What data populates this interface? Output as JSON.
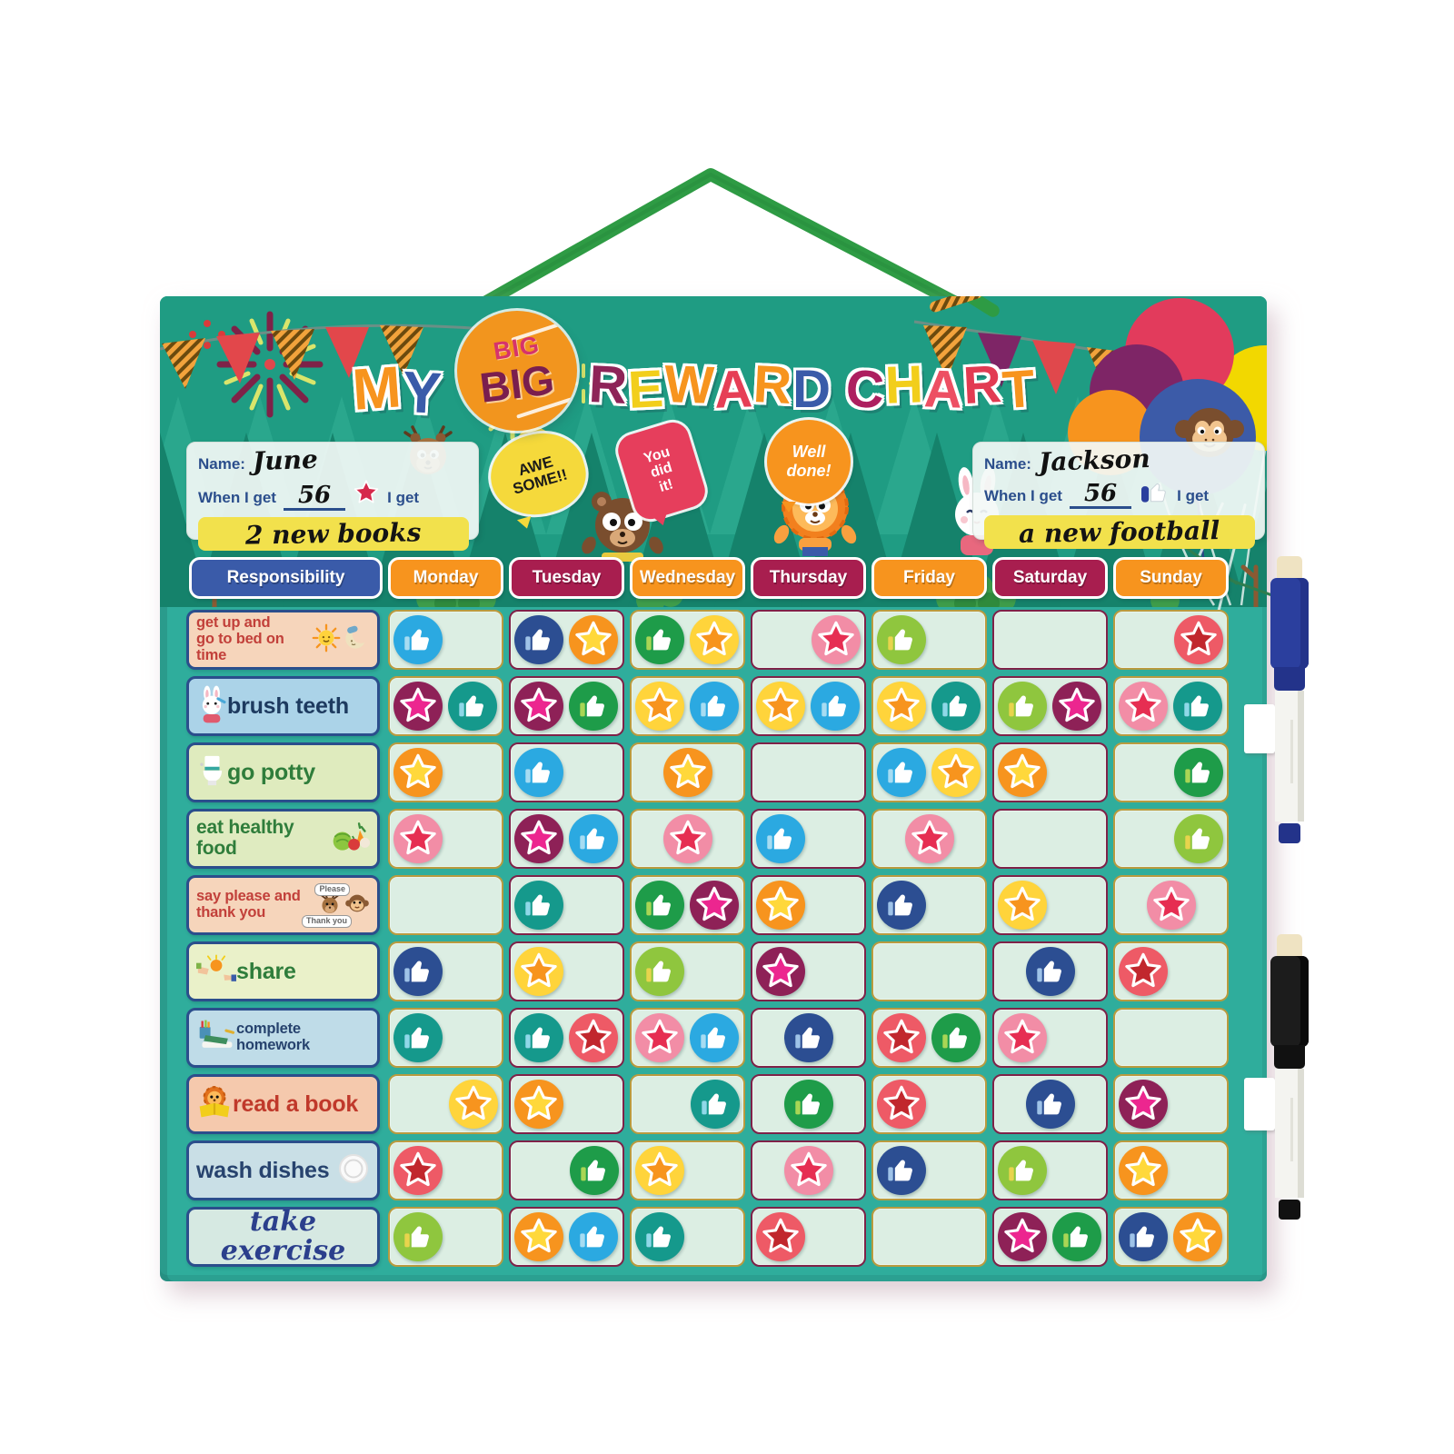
{
  "board": {
    "teal": "#2FAD9C",
    "header_green": "#1F9C83"
  },
  "title": {
    "full": "MY BIG BIG REWARD CHART",
    "my_letters": [
      {
        "ch": "M",
        "color": "#F7941E"
      },
      {
        "ch": "Y",
        "color": "#3A5BA9"
      }
    ],
    "big_small": "BIG",
    "big_large": "BIG",
    "big_circle_color": "#F2951E",
    "rest_letters": [
      {
        "ch": "R",
        "color": "#8E2458"
      },
      {
        "ch": "E",
        "color": "#F2CE1B"
      },
      {
        "ch": "W",
        "color": "#F7941E"
      },
      {
        "ch": "A",
        "color": "#E63E56"
      },
      {
        "ch": "R",
        "color": "#F7941E"
      },
      {
        "ch": "D",
        "color": "#3A5BA9"
      },
      {
        "ch": " "
      },
      {
        "ch": "C",
        "color": "#AD1F5F"
      },
      {
        "ch": "H",
        "color": "#F2CE1B"
      },
      {
        "ch": "A",
        "color": "#ED4F63"
      },
      {
        "ch": "R",
        "color": "#E23B52"
      },
      {
        "ch": "T",
        "color": "#F7941E"
      }
    ]
  },
  "cards": {
    "left": {
      "name_label": "Name:",
      "name": "June",
      "when_label": "When I get",
      "count": "56",
      "get_label": "I get",
      "reward": "2 new books",
      "token": "star"
    },
    "right": {
      "name_label": "Name:",
      "name": "Jackson",
      "when_label": "When I get",
      "count": "56",
      "get_label": "I get",
      "reward": "a new football",
      "token": "thumb"
    }
  },
  "bubbles": {
    "awesome_lines": [
      "AWE",
      "SOME!!"
    ],
    "youdidit_lines": [
      "You",
      "did",
      "it!"
    ],
    "welldone_lines": [
      "Well",
      "done!"
    ]
  },
  "palette": {
    "thumb-sky": {
      "kind": "thumb",
      "bg": "#2BA9E1",
      "sleeve": "#A7DCF2"
    },
    "thumb-navy": {
      "kind": "thumb",
      "bg": "#2C4E92",
      "sleeve": "#9FC3E8"
    },
    "thumb-green": {
      "kind": "thumb",
      "bg": "#1E9C49",
      "sleeve": "#A9D655"
    },
    "thumb-lime": {
      "kind": "thumb",
      "bg": "#8FC63E",
      "sleeve": "#E8D44D"
    },
    "thumb-teal": {
      "kind": "thumb",
      "bg": "#15998C",
      "sleeve": "#8FD8E8"
    },
    "star-orange": {
      "kind": "star",
      "bg": "#F7941E",
      "star": "#FFD83B"
    },
    "star-yellow": {
      "kind": "star",
      "bg": "#FFD43B",
      "star": "#F7941E"
    },
    "star-pink": {
      "kind": "star",
      "bg": "#F28DA6",
      "star": "#E62E52"
    },
    "star-red": {
      "kind": "star",
      "bg": "#EE5A66",
      "star": "#C1272D"
    },
    "star-maroon": {
      "kind": "star",
      "bg": "#8E2157",
      "star": "#EC268F"
    }
  },
  "chart_data": {
    "type": "table",
    "title": "MY BIG BIG REWARD CHART",
    "responsibility_header": {
      "label": "Responsibility",
      "color": "#3A5BA9"
    },
    "columns": [
      {
        "label": "Monday",
        "color": "#F7941E"
      },
      {
        "label": "Tuesday",
        "color": "#A81E4F"
      },
      {
        "label": "Wednesday",
        "color": "#F7941E"
      },
      {
        "label": "Thursday",
        "color": "#A81E4F"
      },
      {
        "label": "Friday",
        "color": "#F7941E"
      },
      {
        "label": "Saturday",
        "color": "#A81E4F"
      },
      {
        "label": "Sunday",
        "color": "#F7941E"
      }
    ],
    "rows": [
      {
        "label": "get up and\ngo to bed on time",
        "bg": "#F6D5BB",
        "color": "#C2403A",
        "icons": [
          "sun-icon",
          "moon-icon"
        ],
        "iconSide": "right",
        "cells": [
          {
            "tokens": [
              "thumb-sky"
            ]
          },
          {
            "tokens": [
              "thumb-navy",
              "star-orange"
            ]
          },
          {
            "tokens": [
              "thumb-green",
              "star-yellow"
            ]
          },
          {
            "tokens": [
              "star-pink"
            ],
            "align": "right"
          },
          {
            "tokens": [
              "thumb-lime"
            ]
          },
          {
            "tokens": []
          },
          {
            "tokens": [
              "star-red"
            ],
            "align": "right"
          }
        ]
      },
      {
        "label": "brush teeth",
        "bg": "#ABD3E8",
        "color": "#1D3A5F",
        "icons": [
          "rabbit-brushing-icon"
        ],
        "iconSide": "left",
        "cells": [
          {
            "tokens": [
              "star-maroon",
              "thumb-teal"
            ]
          },
          {
            "tokens": [
              "star-maroon",
              "thumb-green"
            ]
          },
          {
            "tokens": [
              "star-yellow",
              "thumb-sky"
            ]
          },
          {
            "tokens": [
              "star-yellow",
              "thumb-sky"
            ]
          },
          {
            "tokens": [
              "star-yellow",
              "thumb-teal"
            ]
          },
          {
            "tokens": [
              "thumb-lime",
              "star-maroon"
            ]
          },
          {
            "tokens": [
              "star-pink",
              "thumb-teal"
            ]
          }
        ]
      },
      {
        "label": "go potty",
        "bg": "#DFEBBE",
        "color": "#2F7D3B",
        "icons": [
          "toilet-icon"
        ],
        "iconSide": "left",
        "cells": [
          {
            "tokens": [
              "star-orange"
            ]
          },
          {
            "tokens": [
              "thumb-sky"
            ]
          },
          {
            "tokens": [
              "star-orange"
            ],
            "align": "center"
          },
          {
            "tokens": []
          },
          {
            "tokens": [
              "thumb-sky",
              "star-yellow"
            ]
          },
          {
            "tokens": [
              "star-orange"
            ]
          },
          {
            "tokens": [
              "thumb-green"
            ],
            "align": "right"
          }
        ]
      },
      {
        "label": "eat healthy\nfood",
        "bg": "#DFEBC0",
        "color": "#2F7D3B",
        "icons": [
          "vegetables-icon"
        ],
        "iconSide": "right",
        "cells": [
          {
            "tokens": [
              "star-pink"
            ]
          },
          {
            "tokens": [
              "star-maroon",
              "thumb-sky"
            ]
          },
          {
            "tokens": [
              "star-pink"
            ],
            "align": "center"
          },
          {
            "tokens": [
              "thumb-sky"
            ]
          },
          {
            "tokens": [
              "star-pink"
            ],
            "align": "center"
          },
          {
            "tokens": []
          },
          {
            "tokens": [
              "thumb-lime"
            ],
            "align": "right"
          }
        ]
      },
      {
        "label": "say please and\nthank you",
        "bg": "#F6D5BB",
        "color": "#C2403A",
        "icons": [
          "deer-please-icon",
          "monkey-thankyou-icon"
        ],
        "iconSide": "right",
        "bubbles": [
          "Please",
          "Thank you"
        ],
        "cells": [
          {
            "tokens": []
          },
          {
            "tokens": [
              "thumb-teal"
            ]
          },
          {
            "tokens": [
              "thumb-green",
              "star-maroon"
            ]
          },
          {
            "tokens": [
              "star-orange"
            ]
          },
          {
            "tokens": [
              "thumb-navy"
            ]
          },
          {
            "tokens": [
              "star-yellow"
            ]
          },
          {
            "tokens": [
              "star-pink"
            ],
            "align": "center"
          }
        ]
      },
      {
        "label": "share",
        "bg": "#EAF1C9",
        "color": "#2F7D3B",
        "icons": [
          "sharing-hands-icon"
        ],
        "iconSide": "left",
        "cells": [
          {
            "tokens": [
              "thumb-navy"
            ]
          },
          {
            "tokens": [
              "star-yellow"
            ]
          },
          {
            "tokens": [
              "thumb-lime"
            ]
          },
          {
            "tokens": [
              "star-maroon"
            ]
          },
          {
            "tokens": []
          },
          {
            "tokens": [
              "thumb-navy"
            ],
            "align": "center"
          },
          {
            "tokens": [
              "star-red"
            ]
          }
        ]
      },
      {
        "label": "complete\nhomework",
        "bg": "#BFDCE8",
        "color": "#27436E",
        "icons": [
          "homework-icon"
        ],
        "iconSide": "left",
        "cells": [
          {
            "tokens": [
              "thumb-teal"
            ]
          },
          {
            "tokens": [
              "thumb-teal",
              "star-red"
            ]
          },
          {
            "tokens": [
              "star-pink",
              "thumb-sky"
            ]
          },
          {
            "tokens": [
              "thumb-navy"
            ],
            "align": "center"
          },
          {
            "tokens": [
              "star-red",
              "thumb-green"
            ]
          },
          {
            "tokens": [
              "star-pink"
            ]
          },
          {
            "tokens": []
          }
        ]
      },
      {
        "label": "read a book",
        "bg": "#F5C9AD",
        "color": "#C0392B",
        "icons": [
          "lion-reading-icon"
        ],
        "iconSide": "left",
        "cells": [
          {
            "tokens": [
              "star-yellow"
            ],
            "align": "right"
          },
          {
            "tokens": [
              "star-orange"
            ]
          },
          {
            "tokens": [
              "thumb-teal"
            ],
            "align": "right"
          },
          {
            "tokens": [
              "thumb-green"
            ],
            "align": "center"
          },
          {
            "tokens": [
              "star-red"
            ]
          },
          {
            "tokens": [
              "thumb-navy"
            ],
            "align": "center"
          },
          {
            "tokens": [
              "star-maroon"
            ]
          }
        ]
      },
      {
        "label": "wash dishes",
        "bg": "#C9DFE6",
        "color": "#27436E",
        "icons": [
          "plate-icon"
        ],
        "iconSide": "right",
        "cells": [
          {
            "tokens": [
              "star-red"
            ]
          },
          {
            "tokens": [
              "thumb-green"
            ],
            "align": "right"
          },
          {
            "tokens": [
              "star-yellow"
            ]
          },
          {
            "tokens": [
              "star-pink"
            ],
            "align": "center"
          },
          {
            "tokens": [
              "thumb-navy"
            ]
          },
          {
            "tokens": [
              "thumb-lime"
            ]
          },
          {
            "tokens": [
              "star-orange"
            ]
          }
        ]
      },
      {
        "label": "take exercise",
        "bg": "#D6E9E2",
        "color": "#2B3F8C",
        "script": true,
        "icons": [],
        "iconSide": "left",
        "cells": [
          {
            "tokens": [
              "thumb-lime"
            ]
          },
          {
            "tokens": [
              "star-orange",
              "thumb-sky"
            ]
          },
          {
            "tokens": [
              "thumb-teal"
            ]
          },
          {
            "tokens": [
              "star-red"
            ]
          },
          {
            "tokens": []
          },
          {
            "tokens": [
              "star-maroon",
              "thumb-green"
            ]
          },
          {
            "tokens": [
              "thumb-navy",
              "star-orange"
            ]
          }
        ]
      }
    ]
  },
  "pens": [
    {
      "name": "dry-erase marker blue",
      "cap_color": "#2B3F9E",
      "dark": "#23338A"
    },
    {
      "name": "dry-erase marker black",
      "cap_color": "#1C1C1C",
      "dark": "#111111"
    }
  ]
}
